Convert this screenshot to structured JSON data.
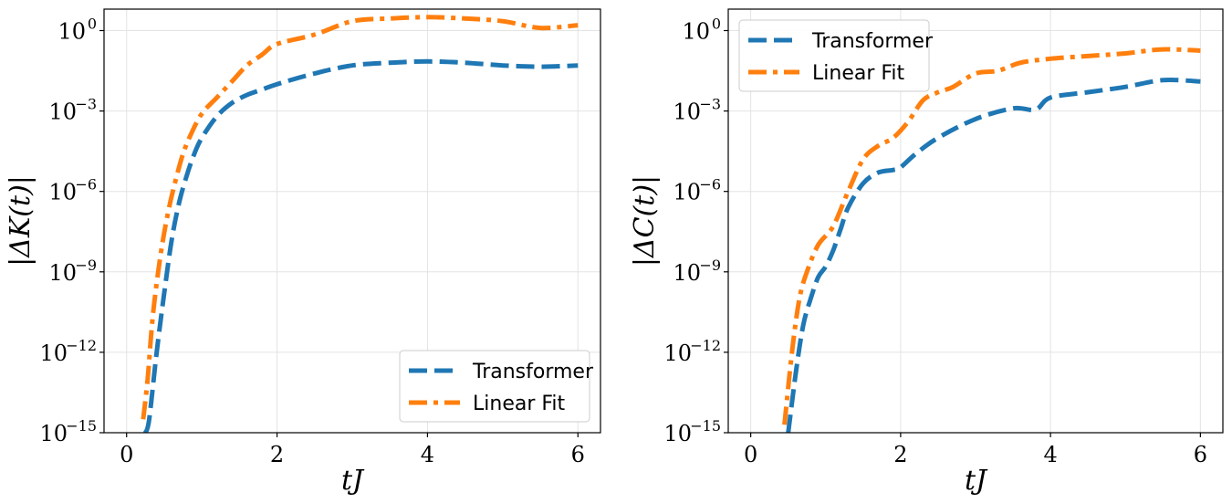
{
  "colors": {
    "transformer": "#1f77b4",
    "linear_fit": "#ff7f0e"
  },
  "chart_data": [
    {
      "type": "line",
      "xlabel": "tJ",
      "ylabel": "|ΔK(t)|",
      "yscale": "log",
      "xlim": [
        -0.3,
        6.3
      ],
      "ylim_exp": [
        -15,
        0.8
      ],
      "xticks": [
        "0",
        "2",
        "4",
        "6"
      ],
      "yticks": [
        "10",
        "10",
        "10",
        "10",
        "10",
        "10"
      ],
      "ytick_exps": [
        "0",
        "−3",
        "−6",
        "−9",
        "−12",
        "−15"
      ],
      "legend_position": "lower-right",
      "series": [
        {
          "name": "Transformer",
          "x": [
            0.25,
            0.3,
            0.4,
            0.5,
            0.6,
            0.7,
            0.8,
            0.9,
            1.0,
            1.2,
            1.4,
            1.6,
            1.8,
            2.0,
            2.5,
            3.0,
            3.5,
            4.0,
            4.5,
            5.0,
            5.5,
            6.0
          ],
          "log10y": [
            -15,
            -14.5,
            -12.0,
            -9.8,
            -7.8,
            -6.4,
            -5.4,
            -4.6,
            -4.0,
            -3.2,
            -2.7,
            -2.4,
            -2.2,
            -2.0,
            -1.6,
            -1.3,
            -1.2,
            -1.15,
            -1.2,
            -1.3,
            -1.35,
            -1.3
          ]
        },
        {
          "name": "Linear Fit",
          "x": [
            0.22,
            0.28,
            0.35,
            0.45,
            0.55,
            0.65,
            0.75,
            0.85,
            1.0,
            1.2,
            1.4,
            1.6,
            1.8,
            2.0,
            2.5,
            3.0,
            3.5,
            4.0,
            4.5,
            5.0,
            5.5,
            6.0
          ],
          "log10y": [
            -14.5,
            -13.0,
            -10.6,
            -8.4,
            -6.8,
            -5.6,
            -4.6,
            -3.9,
            -3.1,
            -2.5,
            -1.9,
            -1.3,
            -0.9,
            -0.5,
            -0.15,
            0.35,
            0.45,
            0.5,
            0.45,
            0.35,
            0.1,
            0.2
          ]
        }
      ]
    },
    {
      "type": "line",
      "xlabel": "tJ",
      "ylabel": "|ΔC(t)|",
      "yscale": "log",
      "xlim": [
        -0.3,
        6.3
      ],
      "ylim_exp": [
        -15,
        0.8
      ],
      "xticks": [
        "0",
        "2",
        "4",
        "6"
      ],
      "yticks": [
        "10",
        "10",
        "10",
        "10",
        "10",
        "10"
      ],
      "ytick_exps": [
        "0",
        "−3",
        "−6",
        "−9",
        "−12",
        "−15"
      ],
      "legend_position": "upper-left",
      "series": [
        {
          "name": "Transformer",
          "x": [
            0.5,
            0.6,
            0.7,
            0.8,
            0.9,
            1.0,
            1.1,
            1.2,
            1.3,
            1.5,
            1.7,
            1.9,
            2.0,
            2.2,
            2.5,
            3.0,
            3.5,
            3.8,
            4.0,
            4.5,
            5.0,
            5.5,
            6.0
          ],
          "log10y": [
            -15,
            -12.8,
            -11.0,
            -10.0,
            -9.2,
            -8.8,
            -8.2,
            -7.4,
            -6.6,
            -5.7,
            -5.3,
            -5.2,
            -5.1,
            -4.6,
            -4.0,
            -3.3,
            -2.9,
            -2.95,
            -2.5,
            -2.3,
            -2.1,
            -1.85,
            -1.9
          ]
        },
        {
          "name": "Linear Fit",
          "x": [
            0.45,
            0.55,
            0.65,
            0.75,
            0.9,
            1.1,
            1.3,
            1.5,
            1.7,
            1.9,
            2.1,
            2.3,
            2.5,
            2.7,
            3.0,
            3.3,
            3.6,
            4.0,
            4.5,
            5.0,
            5.5,
            6.0
          ],
          "log10y": [
            -14.7,
            -12.0,
            -10.0,
            -9.0,
            -8.0,
            -7.3,
            -6.0,
            -4.8,
            -4.3,
            -4.0,
            -3.4,
            -2.6,
            -2.3,
            -2.1,
            -1.6,
            -1.5,
            -1.2,
            -1.05,
            -0.95,
            -0.85,
            -0.7,
            -0.75
          ]
        }
      ]
    }
  ]
}
